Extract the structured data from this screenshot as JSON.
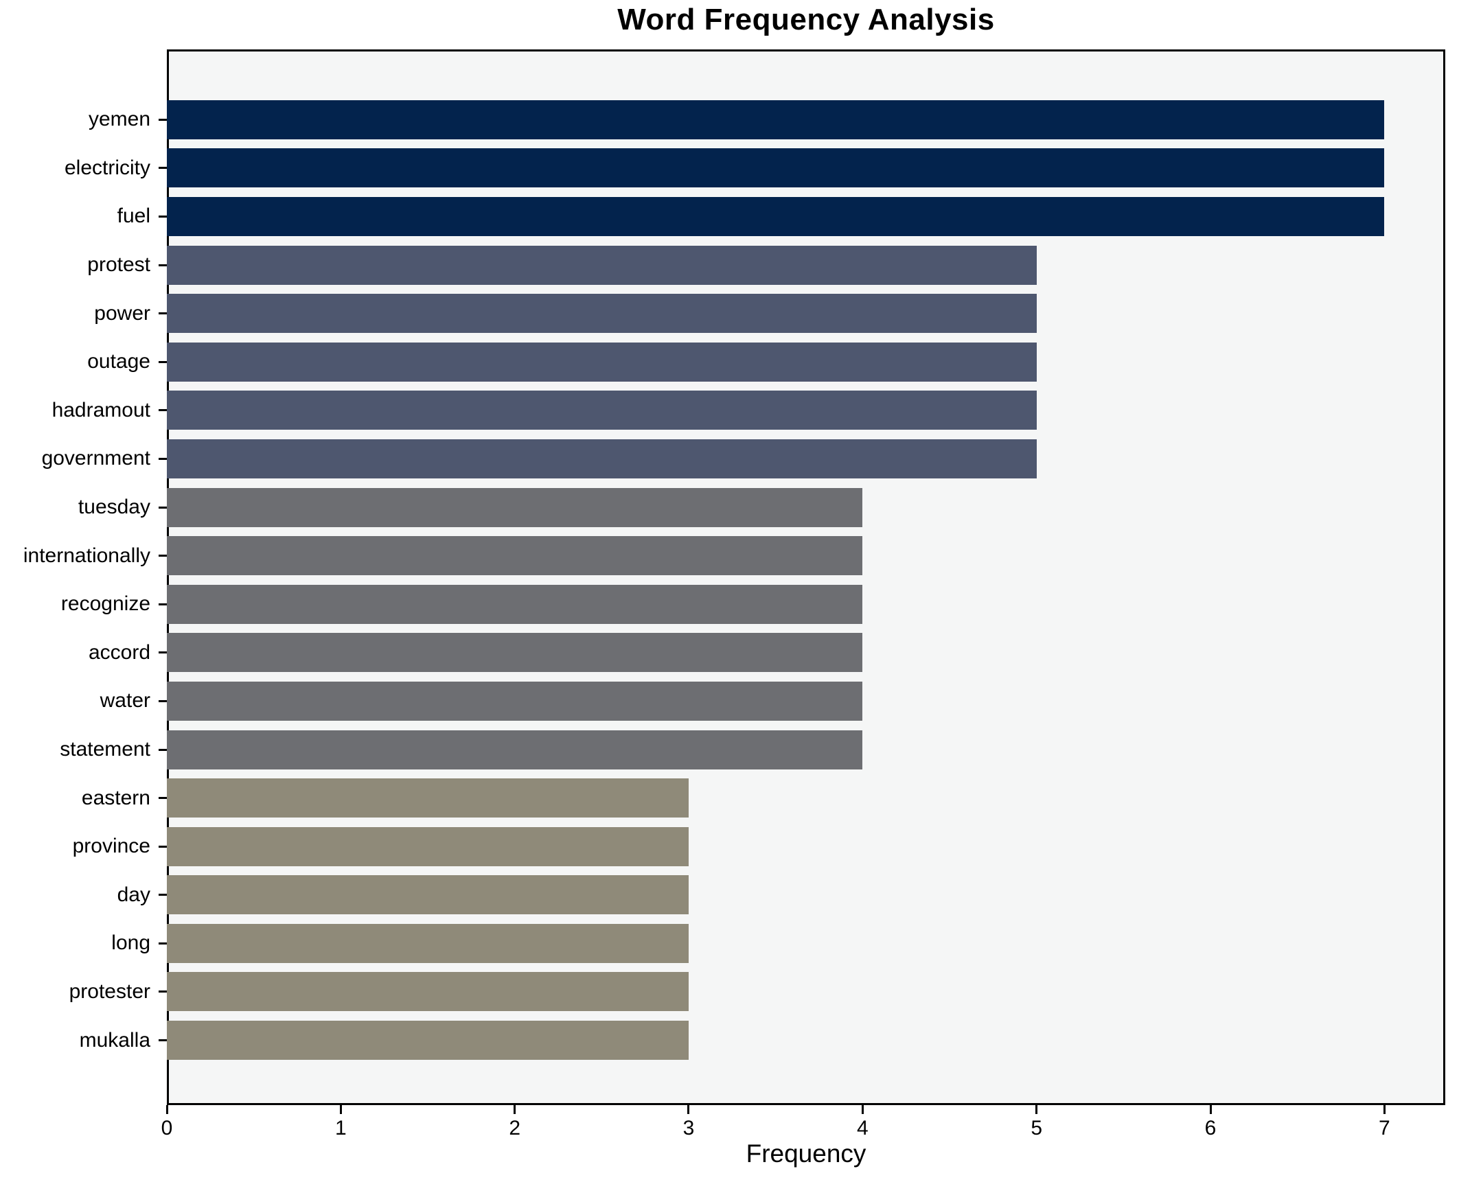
{
  "chart_data": {
    "type": "bar",
    "orientation": "horizontal",
    "title": "Word Frequency Analysis",
    "xlabel": "Frequency",
    "ylabel": "",
    "categories": [
      "yemen",
      "electricity",
      "fuel",
      "protest",
      "power",
      "outage",
      "hadramout",
      "government",
      "tuesday",
      "internationally",
      "recognize",
      "accord",
      "water",
      "statement",
      "eastern",
      "province",
      "day",
      "long",
      "protester",
      "mukalla"
    ],
    "values": [
      7,
      7,
      7,
      5,
      5,
      5,
      5,
      5,
      4,
      4,
      4,
      4,
      4,
      4,
      3,
      3,
      3,
      3,
      3,
      3
    ],
    "bar_colors": [
      "#03234d",
      "#03234d",
      "#03234d",
      "#4e576f",
      "#4e576f",
      "#4e576f",
      "#4e576f",
      "#4e576f",
      "#6d6e72",
      "#6d6e72",
      "#6d6e72",
      "#6d6e72",
      "#6d6e72",
      "#6d6e72",
      "#8f8a79",
      "#8f8a79",
      "#8f8a79",
      "#8f8a79",
      "#8f8a79",
      "#8f8a79"
    ],
    "xticks": [
      0,
      1,
      2,
      3,
      4,
      5,
      6,
      7
    ],
    "xlim": [
      0,
      7.35
    ],
    "grid": false,
    "legend": null,
    "plot_background": "#f5f6f6",
    "axis_color": "#000000"
  }
}
